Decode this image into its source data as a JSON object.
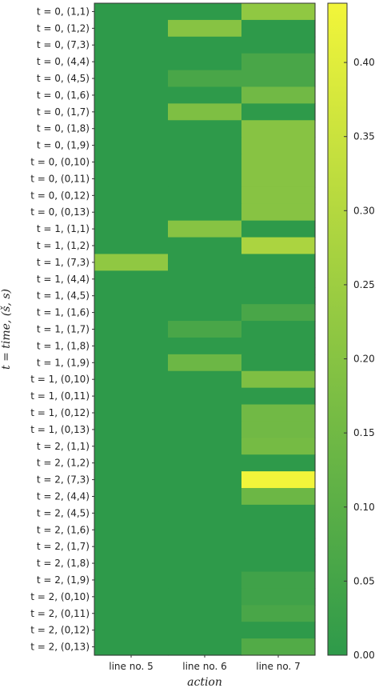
{
  "chart_data": {
    "type": "heatmap",
    "xlabel": "action",
    "ylabel": "t = time, (š, s)",
    "x_categories": [
      "line no. 5",
      "line no. 6",
      "line no. 7"
    ],
    "y_categories": [
      "t = 0, (1,1)",
      "t = 0, (1,2)",
      "t = 0, (7,3)",
      "t = 0, (4,4)",
      "t = 0, (4,5)",
      "t = 0, (1,6)",
      "t = 0, (1,7)",
      "t = 0, (1,8)",
      "t = 0, (1,9)",
      "t = 0, (0,10)",
      "t = 0, (0,11)",
      "t = 0, (0,12)",
      "t = 0, (0,13)",
      "t = 1, (1,1)",
      "t = 1, (1,2)",
      "t = 1, (7,3)",
      "t = 1, (4,4)",
      "t = 1, (4,5)",
      "t = 1, (1,6)",
      "t = 1, (1,7)",
      "t = 1, (1,8)",
      "t = 1, (1,9)",
      "t = 1, (0,10)",
      "t = 1, (0,11)",
      "t = 1, (0,12)",
      "t = 1, (0,13)",
      "t = 2, (1,1)",
      "t = 2, (1,2)",
      "t = 2, (7,3)",
      "t = 2, (4,4)",
      "t = 2, (4,5)",
      "t = 2, (1,6)",
      "t = 2, (1,7)",
      "t = 2, (1,8)",
      "t = 2, (1,9)",
      "t = 2, (0,10)",
      "t = 2, (0,11)",
      "t = 2, (0,12)",
      "t = 2, (0,13)"
    ],
    "values": [
      [
        0.0,
        0.0,
        0.22
      ],
      [
        0.0,
        0.2,
        0.0
      ],
      [
        0.0,
        0.0,
        0.0
      ],
      [
        0.0,
        0.0,
        0.06
      ],
      [
        0.0,
        0.06,
        0.06
      ],
      [
        0.0,
        0.0,
        0.15
      ],
      [
        0.0,
        0.18,
        0.0
      ],
      [
        0.0,
        0.0,
        0.2
      ],
      [
        0.0,
        0.0,
        0.2
      ],
      [
        0.0,
        0.0,
        0.2
      ],
      [
        0.0,
        0.0,
        0.2
      ],
      [
        0.0,
        0.0,
        0.2
      ],
      [
        0.0,
        0.0,
        0.2
      ],
      [
        0.0,
        0.2,
        0.0
      ],
      [
        0.0,
        0.0,
        0.28
      ],
      [
        0.22,
        0.0,
        0.0
      ],
      [
        0.0,
        0.0,
        0.0
      ],
      [
        0.0,
        0.0,
        0.0
      ],
      [
        0.0,
        0.0,
        0.06
      ],
      [
        0.0,
        0.06,
        0.0
      ],
      [
        0.0,
        0.0,
        0.0
      ],
      [
        0.0,
        0.14,
        0.0
      ],
      [
        0.0,
        0.0,
        0.18
      ],
      [
        0.0,
        0.0,
        0.0
      ],
      [
        0.0,
        0.0,
        0.15
      ],
      [
        0.0,
        0.0,
        0.15
      ],
      [
        0.0,
        0.0,
        0.16
      ],
      [
        0.0,
        0.0,
        0.0
      ],
      [
        0.0,
        0.0,
        0.44
      ],
      [
        0.0,
        0.0,
        0.14
      ],
      [
        0.0,
        0.0,
        0.0
      ],
      [
        0.0,
        0.0,
        0.0
      ],
      [
        0.0,
        0.0,
        0.0
      ],
      [
        0.0,
        0.0,
        0.0
      ],
      [
        0.0,
        0.0,
        0.04
      ],
      [
        0.0,
        0.0,
        0.04
      ],
      [
        0.0,
        0.0,
        0.06
      ],
      [
        0.0,
        0.0,
        0.0
      ],
      [
        0.0,
        0.0,
        0.08
      ]
    ],
    "colorbar": {
      "range": [
        0.0,
        0.44
      ],
      "ticks": [
        "0.00",
        "0.05",
        "0.10",
        "0.15",
        "0.20",
        "0.25",
        "0.30",
        "0.35",
        "0.40"
      ],
      "low_color": "#2e9a4a",
      "high_color": "#f2f53a"
    }
  }
}
